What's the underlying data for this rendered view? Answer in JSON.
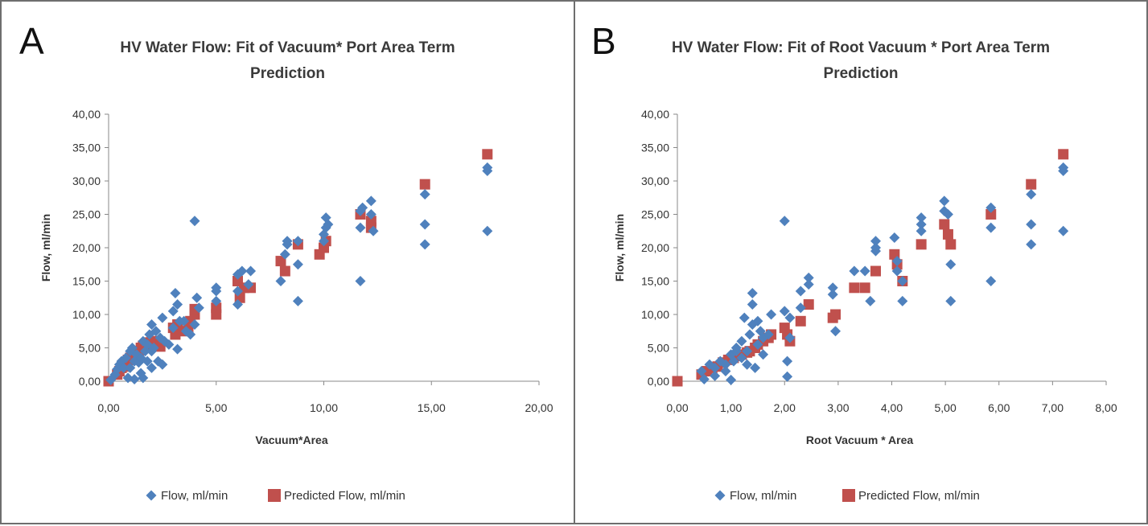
{
  "panels": [
    {
      "letter": "A",
      "title_line1": "HV Water Flow: Fit of Vacuum* Port Area Term",
      "title_line2": "Prediction"
    },
    {
      "letter": "B",
      "title_line1": "HV Water Flow: Fit of Root Vacuum * Port Area Term",
      "title_line2": "Prediction"
    }
  ],
  "chart_data": [
    {
      "type": "scatter",
      "title": "HV Water Flow: Fit of Vacuum* Port Area Term Prediction",
      "xlabel": "Vacuum*Area",
      "ylabel": "Flow, ml/min",
      "xlim": [
        0,
        20
      ],
      "ylim": [
        0,
        40
      ],
      "x_ticks": [
        "0,00",
        "5,00",
        "10,00",
        "15,00",
        "20,00"
      ],
      "y_ticks": [
        "0,00",
        "5,00",
        "10,00",
        "15,00",
        "20,00",
        "25,00",
        "30,00",
        "35,00",
        "40,00"
      ],
      "grid": false,
      "legend_position": "bottom",
      "series": [
        {
          "name": "Flow, ml/min",
          "marker": "diamond",
          "color": "#4f81bd",
          "points": [
            [
              0.1,
              0.2
            ],
            [
              0.3,
              1.0
            ],
            [
              0.4,
              1.8
            ],
            [
              0.5,
              2.5
            ],
            [
              0.6,
              3.0
            ],
            [
              0.7,
              2.0
            ],
            [
              0.8,
              3.5
            ],
            [
              0.9,
              0.5
            ],
            [
              1.0,
              4.5
            ],
            [
              1.0,
              2.0
            ],
            [
              1.1,
              5.0
            ],
            [
              1.2,
              0.3
            ],
            [
              1.2,
              3.0
            ],
            [
              1.3,
              4.0
            ],
            [
              1.4,
              2.8
            ],
            [
              1.5,
              3.5
            ],
            [
              1.5,
              1.2
            ],
            [
              1.6,
              6.0
            ],
            [
              1.6,
              0.5
            ],
            [
              1.7,
              4.5
            ],
            [
              1.8,
              5.5
            ],
            [
              1.8,
              3.0
            ],
            [
              1.9,
              7.0
            ],
            [
              2.0,
              2.0
            ],
            [
              2.0,
              4.5
            ],
            [
              2.0,
              8.5
            ],
            [
              2.1,
              5.0
            ],
            [
              2.2,
              7.5
            ],
            [
              2.3,
              3.0
            ],
            [
              2.4,
              6.5
            ],
            [
              2.5,
              2.5
            ],
            [
              2.5,
              9.5
            ],
            [
              2.6,
              6.0
            ],
            [
              2.8,
              5.5
            ],
            [
              3.0,
              8.0
            ],
            [
              3.0,
              10.5
            ],
            [
              3.1,
              13.2
            ],
            [
              3.2,
              4.8
            ],
            [
              3.2,
              11.5
            ],
            [
              3.3,
              9.0
            ],
            [
              3.5,
              9.0
            ],
            [
              3.6,
              7.5
            ],
            [
              3.8,
              7.0
            ],
            [
              4.0,
              24.0
            ],
            [
              4.0,
              8.5
            ],
            [
              4.1,
              12.5
            ],
            [
              4.2,
              11.0
            ],
            [
              5.0,
              13.5
            ],
            [
              5.0,
              14.0
            ],
            [
              5.0,
              12.0
            ],
            [
              6.0,
              16.0
            ],
            [
              6.0,
              13.5
            ],
            [
              6.0,
              11.5
            ],
            [
              6.2,
              16.5
            ],
            [
              6.5,
              14.5
            ],
            [
              6.6,
              16.5
            ],
            [
              8.0,
              15.0
            ],
            [
              8.2,
              19.0
            ],
            [
              8.3,
              20.5
            ],
            [
              8.3,
              21.0
            ],
            [
              8.8,
              12.0
            ],
            [
              8.8,
              17.5
            ],
            [
              8.8,
              21.0
            ],
            [
              10.0,
              21.0
            ],
            [
              10.0,
              22.0
            ],
            [
              10.1,
              23.0
            ],
            [
              10.1,
              24.5
            ],
            [
              10.2,
              23.5
            ],
            [
              11.7,
              15.0
            ],
            [
              11.7,
              23.0
            ],
            [
              11.7,
              25.5
            ],
            [
              11.8,
              26.0
            ],
            [
              12.2,
              25.0
            ],
            [
              12.2,
              27.0
            ],
            [
              12.3,
              22.5
            ],
            [
              14.7,
              20.5
            ],
            [
              14.7,
              23.5
            ],
            [
              14.7,
              28.0
            ],
            [
              17.6,
              31.5
            ],
            [
              17.6,
              32.0
            ],
            [
              17.6,
              22.5
            ]
          ]
        },
        {
          "name": "Predicted Flow, ml/min",
          "marker": "square",
          "color": "#c0504d",
          "points": [
            [
              0.0,
              0.0
            ],
            [
              0.4,
              1.0
            ],
            [
              0.5,
              1.5
            ],
            [
              0.6,
              2.0
            ],
            [
              0.7,
              2.2
            ],
            [
              0.8,
              2.8
            ],
            [
              0.9,
              3.2
            ],
            [
              1.0,
              3.5
            ],
            [
              1.1,
              3.8
            ],
            [
              1.2,
              4.0
            ],
            [
              1.3,
              4.3
            ],
            [
              1.4,
              4.5
            ],
            [
              1.5,
              5.0
            ],
            [
              1.6,
              5.3
            ],
            [
              1.7,
              5.5
            ],
            [
              1.8,
              5.8
            ],
            [
              2.0,
              6.0
            ],
            [
              2.2,
              5.5
            ],
            [
              2.4,
              5.2
            ],
            [
              3.0,
              8.0
            ],
            [
              3.1,
              7.0
            ],
            [
              3.2,
              8.5
            ],
            [
              3.5,
              7.5
            ],
            [
              3.7,
              8.0
            ],
            [
              3.8,
              9.0
            ],
            [
              4.0,
              10.0
            ],
            [
              4.0,
              10.8
            ],
            [
              5.0,
              11.0
            ],
            [
              5.0,
              10.0
            ],
            [
              6.0,
              15.0
            ],
            [
              6.1,
              12.5
            ],
            [
              6.3,
              14.0
            ],
            [
              6.6,
              14.0
            ],
            [
              8.0,
              18.0
            ],
            [
              8.2,
              16.5
            ],
            [
              8.8,
              20.5
            ],
            [
              9.8,
              19.0
            ],
            [
              10.0,
              20.0
            ],
            [
              10.1,
              21.0
            ],
            [
              11.7,
              25.0
            ],
            [
              12.2,
              24.0
            ],
            [
              12.2,
              23.0
            ],
            [
              14.7,
              29.5
            ],
            [
              17.6,
              34.0
            ]
          ]
        }
      ]
    },
    {
      "type": "scatter",
      "title": "HV Water Flow: Fit of Root Vacuum * Port Area Term Prediction",
      "xlabel": "Root Vacuum * Area",
      "ylabel": "Flow, ml/min",
      "xlim": [
        0,
        8
      ],
      "ylim": [
        0,
        40
      ],
      "x_ticks": [
        "0,00",
        "1,00",
        "2,00",
        "3,00",
        "4,00",
        "5,00",
        "6,00",
        "7,00",
        "8,00"
      ],
      "y_ticks": [
        "0,00",
        "5,00",
        "10,00",
        "15,00",
        "20,00",
        "25,00",
        "30,00",
        "35,00",
        "40,00"
      ],
      "grid": false,
      "legend_position": "bottom",
      "series": [
        {
          "name": "Flow, ml/min",
          "marker": "diamond",
          "color": "#4f81bd",
          "points": [
            [
              0.45,
              1.5
            ],
            [
              0.5,
              0.3
            ],
            [
              0.6,
              2.5
            ],
            [
              0.7,
              0.8
            ],
            [
              0.7,
              2.0
            ],
            [
              0.8,
              3.0
            ],
            [
              0.9,
              2.5
            ],
            [
              0.9,
              1.5
            ],
            [
              1.0,
              0.2
            ],
            [
              1.0,
              4.0
            ],
            [
              1.05,
              3.0
            ],
            [
              1.1,
              4.5
            ],
            [
              1.1,
              5.0
            ],
            [
              1.2,
              3.5
            ],
            [
              1.2,
              6.0
            ],
            [
              1.25,
              9.5
            ],
            [
              1.3,
              2.5
            ],
            [
              1.3,
              4.5
            ],
            [
              1.35,
              7.0
            ],
            [
              1.4,
              13.2
            ],
            [
              1.4,
              11.5
            ],
            [
              1.4,
              8.5
            ],
            [
              1.45,
              2.0
            ],
            [
              1.5,
              5.5
            ],
            [
              1.5,
              9.0
            ],
            [
              1.55,
              7.5
            ],
            [
              1.6,
              4.0
            ],
            [
              1.6,
              6.5
            ],
            [
              1.7,
              7.0
            ],
            [
              1.75,
              10.0
            ],
            [
              2.0,
              24.0
            ],
            [
              2.0,
              10.5
            ],
            [
              2.05,
              0.7
            ],
            [
              2.05,
              3.0
            ],
            [
              2.1,
              6.5
            ],
            [
              2.1,
              9.5
            ],
            [
              2.3,
              13.5
            ],
            [
              2.3,
              11.0
            ],
            [
              2.45,
              15.5
            ],
            [
              2.45,
              14.5
            ],
            [
              2.9,
              14.0
            ],
            [
              2.9,
              13.0
            ],
            [
              2.95,
              7.5
            ],
            [
              3.3,
              16.5
            ],
            [
              3.5,
              16.5
            ],
            [
              3.6,
              12.0
            ],
            [
              3.7,
              19.5
            ],
            [
              3.7,
              21.0
            ],
            [
              3.7,
              20.0
            ],
            [
              4.05,
              21.5
            ],
            [
              4.1,
              18.0
            ],
            [
              4.1,
              16.5
            ],
            [
              4.2,
              12.0
            ],
            [
              4.2,
              15.0
            ],
            [
              4.55,
              23.5
            ],
            [
              4.55,
              24.5
            ],
            [
              4.55,
              22.5
            ],
            [
              4.98,
              25.5
            ],
            [
              4.98,
              27.0
            ],
            [
              5.05,
              25.0
            ],
            [
              5.1,
              17.5
            ],
            [
              5.1,
              12.0
            ],
            [
              5.85,
              15.0
            ],
            [
              5.85,
              23.0
            ],
            [
              5.85,
              26.0
            ],
            [
              6.6,
              20.5
            ],
            [
              6.6,
              23.5
            ],
            [
              6.6,
              28.0
            ],
            [
              7.2,
              31.5
            ],
            [
              7.2,
              32.0
            ],
            [
              7.2,
              22.5
            ]
          ]
        },
        {
          "name": "Predicted Flow, ml/min",
          "marker": "square",
          "color": "#c0504d",
          "points": [
            [
              0.0,
              0.0
            ],
            [
              0.45,
              1.0
            ],
            [
              0.55,
              1.5
            ],
            [
              0.65,
              2.0
            ],
            [
              0.75,
              2.2
            ],
            [
              0.85,
              2.8
            ],
            [
              0.95,
              3.2
            ],
            [
              1.05,
              3.5
            ],
            [
              1.1,
              3.8
            ],
            [
              1.2,
              4.0
            ],
            [
              1.3,
              4.3
            ],
            [
              1.35,
              4.5
            ],
            [
              1.45,
              5.0
            ],
            [
              1.5,
              5.5
            ],
            [
              1.6,
              6.0
            ],
            [
              1.7,
              6.5
            ],
            [
              1.75,
              7.0
            ],
            [
              2.0,
              8.0
            ],
            [
              2.05,
              7.0
            ],
            [
              2.1,
              6.0
            ],
            [
              2.3,
              9.0
            ],
            [
              2.45,
              11.5
            ],
            [
              2.9,
              9.5
            ],
            [
              2.95,
              10.0
            ],
            [
              3.3,
              14.0
            ],
            [
              3.5,
              14.0
            ],
            [
              3.7,
              16.5
            ],
            [
              4.05,
              19.0
            ],
            [
              4.1,
              17.5
            ],
            [
              4.2,
              15.0
            ],
            [
              4.55,
              20.5
            ],
            [
              4.98,
              23.5
            ],
            [
              5.05,
              22.0
            ],
            [
              5.1,
              20.5
            ],
            [
              5.85,
              25.0
            ],
            [
              6.6,
              29.5
            ],
            [
              7.2,
              34.0
            ]
          ]
        }
      ]
    }
  ]
}
